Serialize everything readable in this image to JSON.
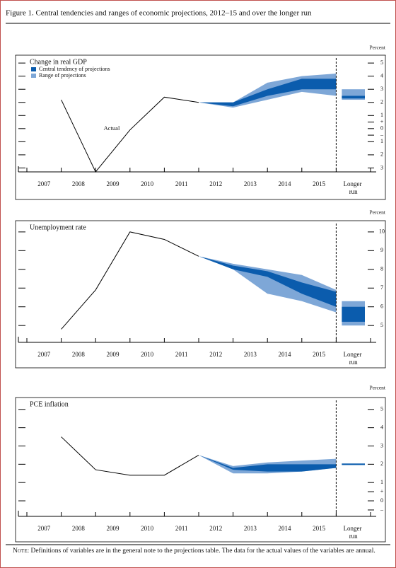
{
  "title": "Figure 1. Central tendencies and ranges of economic projections, 2012–15 and over the longer run",
  "note_label": "Note:",
  "note": "Definitions of variables are in the general note to the projections table. The data for the actual values of the variables are annual.",
  "chart_data": [
    {
      "type": "projection",
      "title": "Change in real GDP",
      "unit_label": "Percent",
      "categories": [
        "2007",
        "2008",
        "2009",
        "2010",
        "2011",
        "2012",
        "2013",
        "2014",
        "2015",
        "Longer run"
      ],
      "actual": {
        "name": "Actual",
        "color": "#000000",
        "values": [
          2.2,
          -3.3,
          -0.1,
          2.4,
          2.0,
          null,
          null,
          null,
          null,
          null
        ]
      },
      "series": [
        {
          "name": "Range of projections",
          "color": "#7ea7d7",
          "low": [
            null,
            null,
            null,
            null,
            null,
            1.6,
            2.2,
            2.8,
            2.5,
            2.2
          ],
          "high": [
            null,
            null,
            null,
            null,
            null,
            2.0,
            3.5,
            4.0,
            4.2,
            3.0
          ]
        },
        {
          "name": "Central tendency of projections",
          "color": "#0b5cad",
          "low": [
            null,
            null,
            null,
            null,
            null,
            1.7,
            2.5,
            3.0,
            3.0,
            2.3
          ],
          "high": [
            null,
            null,
            null,
            null,
            null,
            2.0,
            3.0,
            3.8,
            3.8,
            2.5
          ]
        }
      ],
      "legend": "upper left",
      "ylim": [
        -3.3,
        5.6
      ],
      "yticks": [
        5,
        4,
        3,
        2,
        1,
        {
          "value": 0.5,
          "label": "+"
        },
        0,
        {
          "value": -0.5,
          "label": "–"
        },
        {
          "value": -1,
          "label": "1"
        },
        {
          "value": -2,
          "label": "2"
        },
        {
          "value": -3,
          "label": "3"
        }
      ]
    },
    {
      "type": "projection",
      "title": "Unemployment rate",
      "unit_label": "Percent",
      "categories": [
        "2007",
        "2008",
        "2009",
        "2010",
        "2011",
        "2012",
        "2013",
        "2014",
        "2015",
        "Longer run"
      ],
      "actual": {
        "color": "#000000",
        "values": [
          4.8,
          6.9,
          10.0,
          9.6,
          8.7,
          null,
          null,
          null,
          null,
          null
        ]
      },
      "series": [
        {
          "color": "#7ea7d7",
          "low": [
            null,
            null,
            null,
            null,
            null,
            8.0,
            6.7,
            6.3,
            5.7,
            5.0
          ],
          "high": [
            null,
            null,
            null,
            null,
            null,
            8.3,
            8.0,
            7.7,
            6.9,
            6.3
          ]
        },
        {
          "color": "#0b5cad",
          "low": [
            null,
            null,
            null,
            null,
            null,
            8.0,
            7.6,
            6.7,
            6.0,
            5.2
          ],
          "high": [
            null,
            null,
            null,
            null,
            null,
            8.2,
            7.9,
            7.3,
            6.8,
            6.0
          ]
        }
      ],
      "ylim": [
        4.1,
        10.6
      ],
      "yticks": [
        10,
        9,
        8,
        7,
        6,
        5
      ]
    },
    {
      "type": "projection",
      "title": "PCE inflation",
      "unit_label": "Percent",
      "categories": [
        "2007",
        "2008",
        "2009",
        "2010",
        "2011",
        "2012",
        "2013",
        "2014",
        "2015",
        "Longer run"
      ],
      "actual": {
        "color": "#000000",
        "values": [
          3.5,
          1.7,
          1.4,
          1.4,
          2.5,
          null,
          null,
          null,
          null,
          null
        ]
      },
      "series": [
        {
          "color": "#7ea7d7",
          "low": [
            null,
            null,
            null,
            null,
            null,
            1.5,
            1.5,
            1.6,
            1.8,
            2.0
          ],
          "high": [
            null,
            null,
            null,
            null,
            null,
            1.9,
            2.1,
            2.2,
            2.3,
            2.0
          ]
        },
        {
          "color": "#0b5cad",
          "low": [
            null,
            null,
            null,
            null,
            null,
            1.7,
            1.6,
            1.6,
            1.8,
            2.0
          ],
          "high": [
            null,
            null,
            null,
            null,
            null,
            1.8,
            2.0,
            2.0,
            2.0,
            2.0
          ]
        }
      ],
      "ylim": [
        -0.85,
        5.65
      ],
      "yticks": [
        5,
        4,
        3,
        2,
        1,
        {
          "value": 0.5,
          "label": "+"
        },
        0,
        {
          "value": -0.5,
          "label": "–"
        }
      ]
    }
  ]
}
